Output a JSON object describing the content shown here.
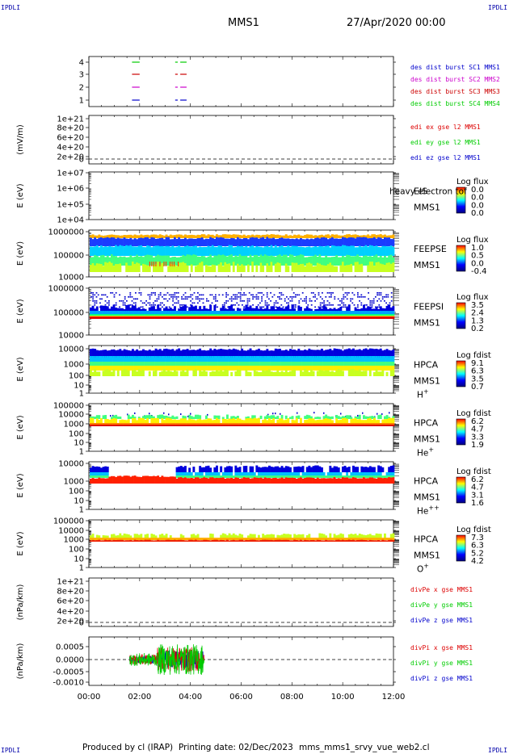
{
  "header": {
    "corner_label": "IPDLI",
    "mission": "MMS1",
    "datetime": "27/Apr/2020 00:00"
  },
  "footer": {
    "produced_by": "Produced by cl (IRAP)",
    "printing_date": "Printing date: 02/Dec/2023",
    "script_name": "mms_mms1_srvy_vue_web2.cl"
  },
  "colors": {
    "mms1": "#0000cc",
    "mms2": "#cc00cc",
    "mms3": "#cc0000",
    "mms4": "#00cc00",
    "ex": "#dd0000",
    "ey": "#00cc00",
    "ez": "#0000cc"
  },
  "chart_data": {
    "type": "multi-panel-timeseries",
    "x_axis": {
      "ticks": [
        "00:00",
        "02:00",
        "04:00",
        "06:00",
        "08:00",
        "10:00",
        "12:00"
      ],
      "range_hours": [
        0,
        12
      ]
    },
    "panels": [
      {
        "id": "burst",
        "type": "line",
        "y_ticks": [
          "4",
          "3",
          "2",
          "1"
        ],
        "series": [
          {
            "name": "des dist burst SC1 MMS1",
            "color": "#0000cc",
            "level": 1,
            "segments_hours": [
              [
                1.7,
                2.0
              ],
              [
                3.4,
                3.5
              ],
              [
                3.6,
                3.85
              ]
            ]
          },
          {
            "name": "des dist burst SC2 MMS2",
            "color": "#cc00cc",
            "level": 2,
            "segments_hours": [
              [
                1.7,
                2.0
              ],
              [
                3.4,
                3.5
              ],
              [
                3.6,
                3.85
              ]
            ]
          },
          {
            "name": "des dist burst SC3 MMS3",
            "color": "#cc0000",
            "level": 3,
            "segments_hours": [
              [
                1.7,
                2.0
              ],
              [
                3.4,
                3.5
              ],
              [
                3.6,
                3.85
              ]
            ]
          },
          {
            "name": "des dist burst SC4 MMS4",
            "color": "#00cc00",
            "level": 4,
            "segments_hours": [
              [
                1.7,
                2.0
              ],
              [
                3.4,
                3.5
              ],
              [
                3.6,
                3.85
              ]
            ]
          }
        ]
      },
      {
        "id": "edi",
        "type": "line",
        "ylabel": "(mV/m)",
        "y_ticks": [
          "1e+21",
          "8e+20",
          "6e+20",
          "4e+20",
          "2e+20",
          "0"
        ],
        "series": [
          {
            "name": "edi ex gse l2 MMS1",
            "color": "#dd0000"
          },
          {
            "name": "edi ey gse l2 MMS1",
            "color": "#00cc00"
          },
          {
            "name": "edi ez gse l2 MMS1",
            "color": "#0000cc"
          }
        ]
      },
      {
        "id": "eis",
        "type": "heatmap",
        "ylabel": "E (eV)",
        "y_ticks": [
          "1e+07",
          "1e+06",
          "1e+05",
          "1e+04"
        ],
        "instrument": "EIS",
        "species": "heavy electron tof",
        "spacecraft": "MMS1",
        "colorbar_title": "Log flux",
        "colorbar_ticks": [
          "0.0",
          "0.0",
          "0.0",
          "0.0"
        ]
      },
      {
        "id": "feepse",
        "type": "heatmap",
        "ylabel": "E (eV)",
        "y_ticks": [
          "1000000",
          "100000",
          "10000"
        ],
        "instrument": "FEEPSE",
        "spacecraft": "MMS1",
        "colorbar_title": "Log flux",
        "colorbar_ticks": [
          "1.0",
          "0.5",
          "0.0",
          "-0.4"
        ]
      },
      {
        "id": "feepsi",
        "type": "heatmap",
        "ylabel": "E (eV)",
        "y_ticks": [
          "1000000",
          "100000",
          "10000"
        ],
        "instrument": "FEEPSI",
        "spacecraft": "MMS1",
        "colorbar_title": "Log flux",
        "colorbar_ticks": [
          "3.5",
          "2.4",
          "1.3",
          "0.2"
        ]
      },
      {
        "id": "hpca_h",
        "type": "heatmap",
        "ylabel": "E (eV)",
        "y_ticks": [
          "10000",
          "1000",
          "100",
          "10",
          "1"
        ],
        "instrument": "HPCA",
        "spacecraft": "MMS1",
        "species": "H",
        "species_sup": "+",
        "colorbar_title": "Log fdist",
        "colorbar_ticks": [
          "9.1",
          "6.3",
          "3.5",
          "0.7"
        ]
      },
      {
        "id": "hpca_he1",
        "type": "heatmap",
        "ylabel": "E (eV)",
        "y_ticks": [
          "100000",
          "10000",
          "1000",
          "100",
          "10",
          "1"
        ],
        "instrument": "HPCA",
        "spacecraft": "MMS1",
        "species": "He",
        "species_sup": "+",
        "colorbar_title": "Log fdist",
        "colorbar_ticks": [
          "6.2",
          "4.7",
          "3.3",
          "1.9"
        ]
      },
      {
        "id": "hpca_he2",
        "type": "heatmap",
        "ylabel": "E (eV)",
        "y_ticks": [
          "10000",
          "1000",
          "100",
          "10",
          "1"
        ],
        "instrument": "HPCA",
        "spacecraft": "MMS1",
        "species": "He",
        "species_sup": "++",
        "colorbar_title": "Log fdist",
        "colorbar_ticks": [
          "6.2",
          "4.7",
          "3.1",
          "1.6"
        ]
      },
      {
        "id": "hpca_o",
        "type": "heatmap",
        "ylabel": "E (eV)",
        "y_ticks": [
          "100000",
          "10000",
          "1000",
          "100",
          "10",
          "1"
        ],
        "instrument": "HPCA",
        "spacecraft": "MMS1",
        "species": "O",
        "species_sup": "+",
        "colorbar_title": "Log fdist",
        "colorbar_ticks": [
          "7.3",
          "6.3",
          "5.2",
          "4.2"
        ]
      },
      {
        "id": "divpe",
        "type": "line",
        "ylabel": "(nPa/km)",
        "y_ticks": [
          "1e+21",
          "8e+20",
          "6e+20",
          "4e+20",
          "2e+20",
          "0"
        ],
        "series": [
          {
            "name": "divPe x gse MMS1",
            "color": "#dd0000"
          },
          {
            "name": "divPe y gse MMS1",
            "color": "#00cc00"
          },
          {
            "name": "divPe z gse MMS1",
            "color": "#0000cc"
          }
        ]
      },
      {
        "id": "divpi",
        "type": "line",
        "ylabel": "(nPa/km)",
        "y_ticks": [
          "0.0005",
          "0.0000",
          "-0.0005",
          "-0.0010"
        ],
        "ylim": [
          -0.0012,
          0.0008
        ],
        "data_range_hours": [
          1.6,
          4.55
        ],
        "series": [
          {
            "name": "divPi x gse MMS1",
            "color": "#dd0000"
          },
          {
            "name": "divPi y gse MMS1",
            "color": "#00cc00"
          },
          {
            "name": "divPi z gse MMS1",
            "color": "#0000cc"
          }
        ]
      }
    ]
  }
}
